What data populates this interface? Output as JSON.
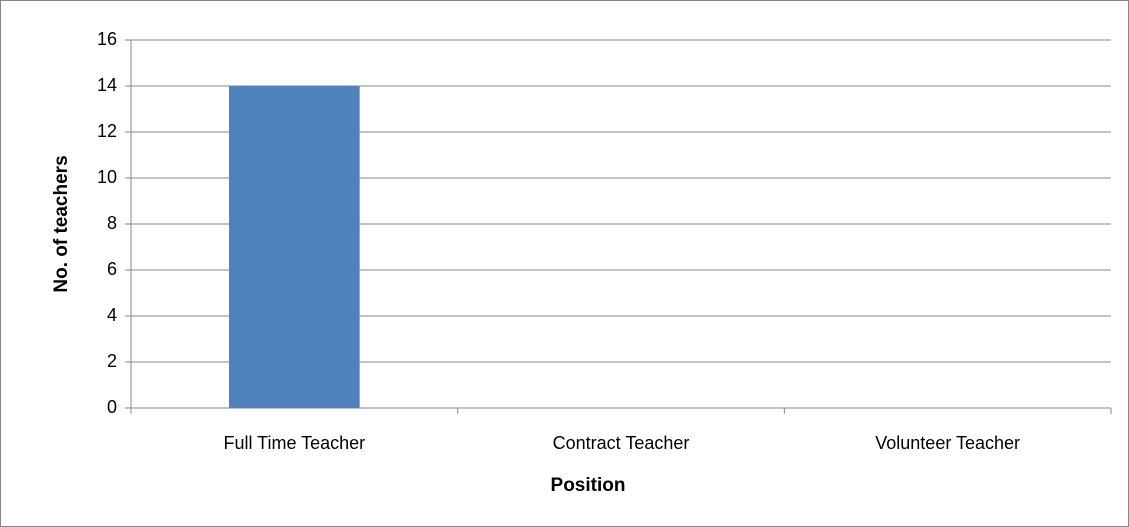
{
  "chart_data": {
    "type": "bar",
    "categories": [
      "Full Time Teacher",
      "Contract Teacher",
      "Volunteer Teacher"
    ],
    "values": [
      14,
      0,
      0
    ],
    "color": "#4f81bd",
    "x_label": "Position",
    "y_label": "No. of teachers",
    "ylim": [
      0,
      16
    ],
    "yticks": [
      0,
      2,
      4,
      6,
      8,
      10,
      12,
      14,
      16
    ],
    "grid": true
  }
}
